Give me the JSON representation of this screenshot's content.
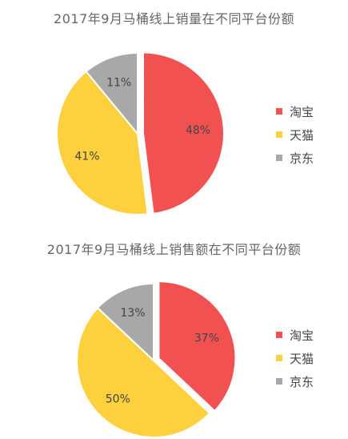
{
  "chart_data": [
    {
      "type": "pie",
      "title": "2017年9月马桶线上销量在不同平台份额",
      "slices": [
        {
          "label": "淘宝",
          "value": 48,
          "color": "#f25151",
          "exploded": true
        },
        {
          "label": "天猫",
          "value": 41,
          "color": "#fdd03d",
          "exploded": false
        },
        {
          "label": "京东",
          "value": 11,
          "color": "#a8a8a8",
          "exploded": false
        }
      ],
      "value_labels": [
        "48%",
        "41%",
        "11%"
      ],
      "legend_position": "right"
    },
    {
      "type": "pie",
      "title": "2017年9月马桶线上销售额在不同平台份额",
      "slices": [
        {
          "label": "淘宝",
          "value": 37,
          "color": "#f25151",
          "exploded": true
        },
        {
          "label": "天猫",
          "value": 50,
          "color": "#fdd03d",
          "exploded": false
        },
        {
          "label": "京东",
          "value": 13,
          "color": "#a8a8a8",
          "exploded": false
        }
      ],
      "value_labels": [
        "37%",
        "50%",
        "13%"
      ],
      "legend_position": "right"
    }
  ]
}
